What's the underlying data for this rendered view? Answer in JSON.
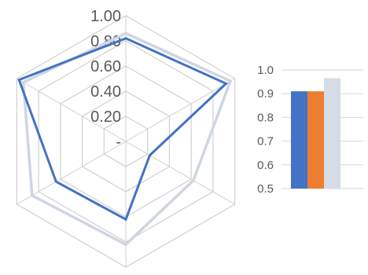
{
  "chart_data": [
    {
      "type": "radar",
      "axes": [
        "",
        "",
        "",
        "",
        "",
        ""
      ],
      "tick_labels": [
        "-",
        "0.20",
        "0.40",
        "0.60",
        "0.80",
        "1.00"
      ],
      "range": [
        0,
        1
      ],
      "grid": true,
      "grid_color": "#d0d0d0",
      "series": [
        {
          "values": [
            0.82,
            0.92,
            0.22,
            0.62,
            0.64,
            0.98
          ],
          "color": "#4472c4"
        },
        {
          "values": [
            0.86,
            0.96,
            0.62,
            0.82,
            0.86,
            0.94
          ],
          "color": "#cfd5e2"
        }
      ]
    },
    {
      "type": "bar",
      "categories": [
        ""
      ],
      "tick_labels": [
        "0.5",
        "0.6",
        "0.7",
        "0.8",
        "0.9",
        "1.0"
      ],
      "ylim": [
        0.5,
        1.0
      ],
      "grid": true,
      "series": [
        {
          "values": [
            0.91
          ],
          "color": "#4472c4"
        },
        {
          "values": [
            0.91
          ],
          "color": "#ed7d31"
        },
        {
          "values": [
            0.965
          ],
          "color": "#d6dce5"
        }
      ]
    }
  ]
}
